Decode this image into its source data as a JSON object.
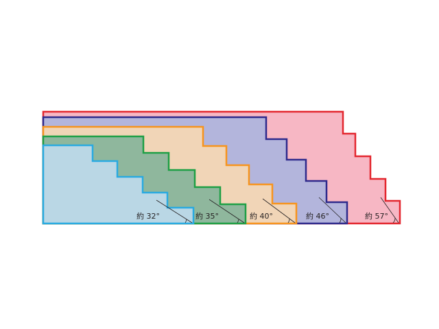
{
  "angle_labels": [
    "約 32°",
    "約 35°",
    "約 40°",
    "約 46°",
    "約 57°"
  ]
}
